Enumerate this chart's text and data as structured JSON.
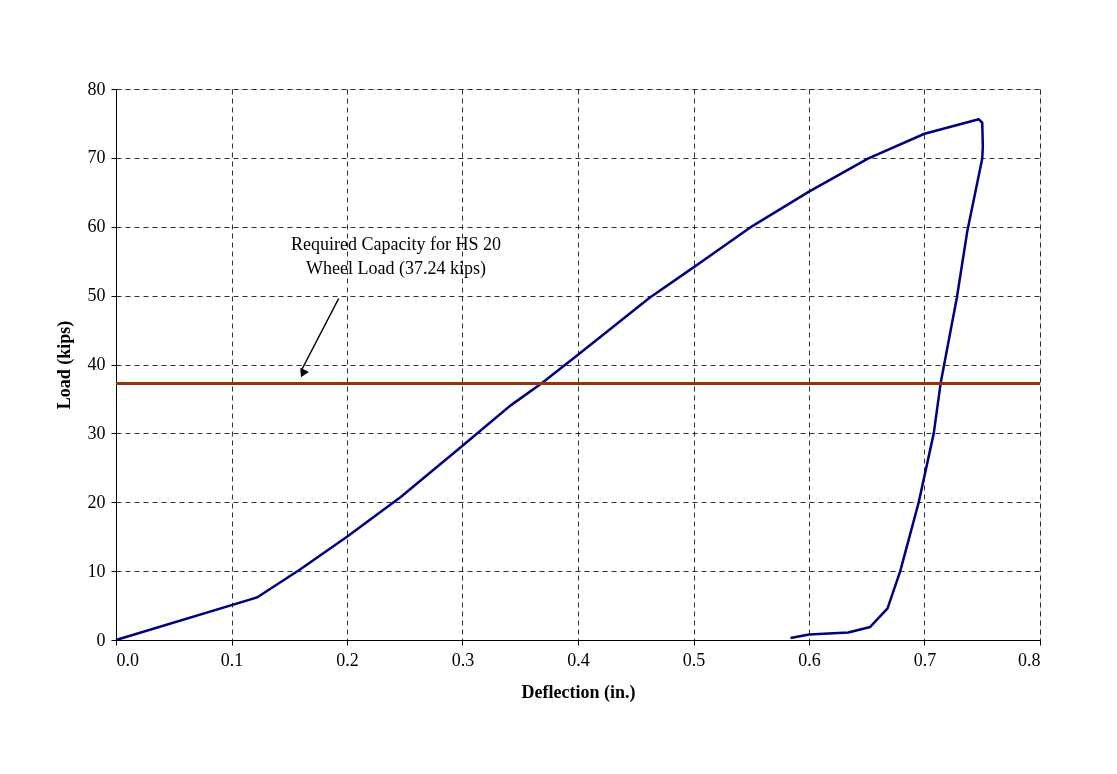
{
  "chart_data": {
    "type": "line",
    "xlabel": "Deflection (in.)",
    "ylabel": "Load (kips)",
    "x": [
      0,
      0.1224,
      0.159,
      0.2,
      0.246,
      0.3,
      0.342,
      0.368,
      0.4,
      0.462,
      0.5,
      0.551,
      0.6,
      0.651,
      0.7,
      0.747,
      0.75,
      0.7505,
      0.75,
      0.737,
      0.728,
      0.714,
      0.708,
      0.695,
      0.679,
      0.668,
      0.653,
      0.634,
      0.6,
      0.584
    ],
    "series": [
      {
        "color": "#000080",
        "values": [
          0,
          6.2,
          10.2,
          15.0,
          20.7,
          28.2,
          34.1,
          37.2,
          41.4,
          49.7,
          54.1,
          60.1,
          65.1,
          69.9,
          73.5,
          75.6,
          75.1,
          71.7,
          69.9,
          59.3,
          49.7,
          37.3,
          30.0,
          20.0,
          10.0,
          4.6,
          1.9,
          1.1,
          0.8,
          0.3
        ]
      }
    ],
    "xlim": [
      0,
      0.8
    ],
    "ylim": [
      0,
      80
    ],
    "xticks": [
      {
        "value": 0,
        "label": "0.0"
      },
      0.1,
      0.2,
      0.3,
      0.4,
      0.5,
      0.6,
      0.7,
      0.8
    ],
    "yticks": [
      0,
      10,
      20,
      30,
      40,
      50,
      60,
      70,
      80
    ],
    "ref_lines": [
      {
        "axis": "y",
        "value": 37.24,
        "color": "#993300",
        "line_style": "solid"
      }
    ],
    "annotations": [
      "Required Capacity for HS 20\nWheel Load (37.24 kips)"
    ],
    "grid": true,
    "marker": "none",
    "line_style": "solid"
  }
}
